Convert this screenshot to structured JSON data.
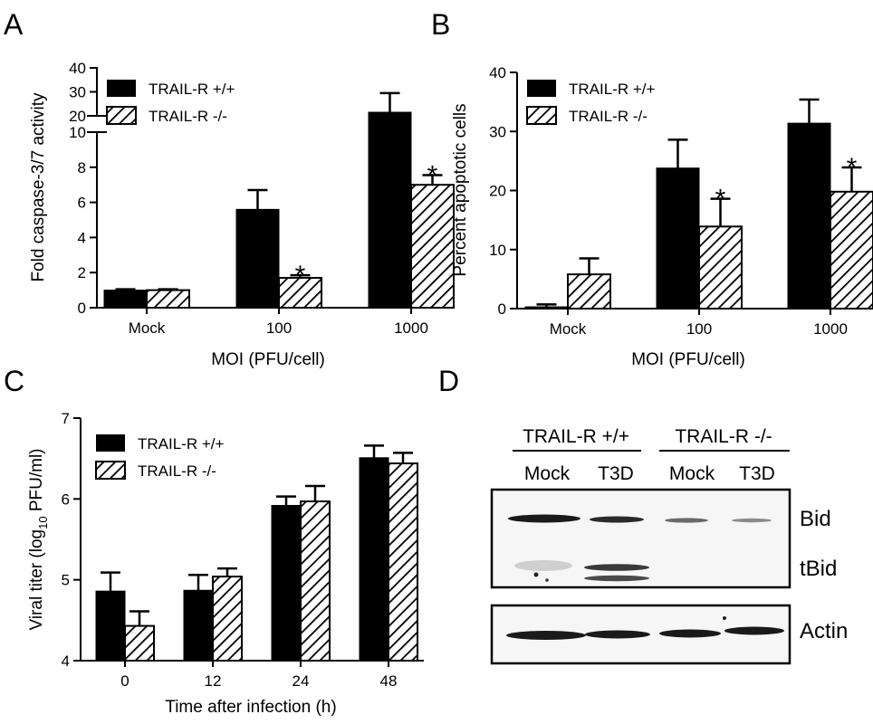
{
  "panels": [
    {
      "letter": "A"
    },
    {
      "letter": "B"
    },
    {
      "letter": "C"
    },
    {
      "letter": "D"
    }
  ],
  "chart_data": [
    {
      "panel": "A",
      "type": "bar",
      "ylabel": "Fold caspase-3/7 activity",
      "xlabel": "MOI (PFU/cell)",
      "categories": [
        "Mock",
        "100",
        "1000"
      ],
      "series": [
        {
          "name": "TRAIL-R +/+",
          "pattern": "solid",
          "values": [
            1.0,
            5.6,
            21.5
          ],
          "errors": [
            0.05,
            1.1,
            8.0
          ]
        },
        {
          "name": "TRAIL-R -/-",
          "pattern": "hatched",
          "values": [
            1.0,
            1.7,
            7.0
          ],
          "errors": [
            0.05,
            0.15,
            0.55
          ]
        }
      ],
      "significance": [
        {
          "category": "100",
          "series": "TRAIL-R -/-",
          "mark": "*"
        },
        {
          "category": "1000",
          "series": "TRAIL-R -/-",
          "mark": "*"
        }
      ],
      "axis_break": {
        "lower_range": [
          0,
          10
        ],
        "upper_range": [
          20,
          30
        ]
      },
      "yticks_lower": [
        "0",
        "2",
        "4",
        "6",
        "8",
        "10"
      ],
      "yticks_upper": [
        "20",
        "30",
        "40"
      ],
      "legend": "top-left"
    },
    {
      "panel": "B",
      "type": "bar",
      "ylabel": "Percent apoptotic cells",
      "xlabel": "MOI (PFU/cell)",
      "categories": [
        "Mock",
        "100",
        "1000"
      ],
      "series": [
        {
          "name": "TRAIL-R +/+",
          "pattern": "solid",
          "values": [
            0.3,
            23.8,
            31.4
          ],
          "errors": [
            0.4,
            4.8,
            4.0
          ]
        },
        {
          "name": "TRAIL-R -/-",
          "pattern": "hatched",
          "values": [
            5.8,
            13.9,
            19.8
          ],
          "errors": [
            2.7,
            4.7,
            4.1
          ]
        }
      ],
      "significance": [
        {
          "category": "100",
          "series": "TRAIL-R -/-",
          "mark": "*"
        },
        {
          "category": "1000",
          "series": "TRAIL-R -/-",
          "mark": "*"
        }
      ],
      "ylim": [
        0,
        40
      ],
      "yticks": [
        "0",
        "10",
        "20",
        "30",
        "40"
      ],
      "legend": "top-left"
    },
    {
      "panel": "C",
      "type": "bar",
      "ylabel": "Viral titer (log10 PFU/ml)",
      "xlabel": "Time after infection (h)",
      "categories": [
        "0",
        "12",
        "24",
        "48"
      ],
      "series": [
        {
          "name": "TRAIL-R +/+",
          "pattern": "solid",
          "values": [
            4.86,
            4.87,
            5.92,
            6.51
          ],
          "errors": [
            0.23,
            0.19,
            0.11,
            0.15
          ]
        },
        {
          "name": "TRAIL-R -/-",
          "pattern": "hatched",
          "values": [
            4.43,
            5.04,
            5.97,
            6.44
          ],
          "errors": [
            0.18,
            0.1,
            0.19,
            0.13
          ]
        }
      ],
      "ylim": [
        4,
        7
      ],
      "yticks": [
        "4",
        "5",
        "6",
        "7"
      ],
      "legend": "top-left"
    }
  ],
  "panel_d": {
    "groups": [
      "TRAIL-R +/+",
      "TRAIL-R -/-"
    ],
    "lanes": [
      "Mock",
      "T3D",
      "Mock",
      "T3D"
    ],
    "bands": [
      "Bid",
      "tBid",
      "Actin"
    ]
  }
}
